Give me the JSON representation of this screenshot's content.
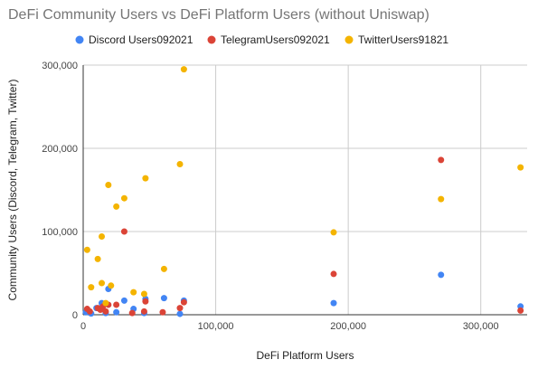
{
  "chart_data": {
    "type": "scatter",
    "title": "DeFi Community Users vs DeFi Platform Users (without Uniswap)",
    "xlabel": "DeFi Platform Users",
    "ylabel": "Community Users (Discord, Telegram, Twitter)",
    "xlim": [
      0,
      335000
    ],
    "ylim": [
      0,
      300000
    ],
    "xticks": [
      0,
      100000,
      200000,
      300000
    ],
    "yticks": [
      0,
      100000,
      200000,
      300000
    ],
    "xtick_labels": [
      "0",
      "100,000",
      "200,000",
      "300,000"
    ],
    "ytick_labels": [
      "0",
      "100,000",
      "200,000",
      "300,000"
    ],
    "grid": true,
    "legend": "top",
    "series": [
      {
        "name": "Discord Users092021",
        "color": "#4285f4",
        "points": [
          [
            2000,
            3000
          ],
          [
            6000,
            1500
          ],
          [
            10000,
            8000
          ],
          [
            14000,
            14000
          ],
          [
            17000,
            2000
          ],
          [
            19000,
            31000
          ],
          [
            25000,
            3000
          ],
          [
            31000,
            17000
          ],
          [
            38000,
            7000
          ],
          [
            46000,
            2000
          ],
          [
            47000,
            19000
          ],
          [
            61000,
            20000
          ],
          [
            73000,
            1000
          ],
          [
            76000,
            17000
          ],
          [
            189000,
            14000
          ],
          [
            270000,
            48000
          ],
          [
            330000,
            10000
          ]
        ]
      },
      {
        "name": "TelegramUsers092021",
        "color": "#db4437",
        "points": [
          [
            3000,
            7000
          ],
          [
            5000,
            4000
          ],
          [
            11000,
            8000
          ],
          [
            13000,
            6000
          ],
          [
            15000,
            10000
          ],
          [
            17000,
            4000
          ],
          [
            19000,
            12000
          ],
          [
            25000,
            12000
          ],
          [
            31000,
            100000
          ],
          [
            37000,
            2000
          ],
          [
            46000,
            4000
          ],
          [
            47000,
            16000
          ],
          [
            60000,
            3000
          ],
          [
            73000,
            8000
          ],
          [
            76000,
            15000
          ],
          [
            189000,
            49000
          ],
          [
            270000,
            186000
          ],
          [
            330000,
            5000
          ]
        ]
      },
      {
        "name": "TwitterUsers91821",
        "color": "#f4b400",
        "points": [
          [
            3000,
            78000
          ],
          [
            6000,
            33000
          ],
          [
            11000,
            67000
          ],
          [
            14000,
            94000
          ],
          [
            14000,
            38000
          ],
          [
            17000,
            14000
          ],
          [
            19000,
            156000
          ],
          [
            21000,
            35000
          ],
          [
            25000,
            130000
          ],
          [
            31000,
            140000
          ],
          [
            38000,
            27000
          ],
          [
            46000,
            25000
          ],
          [
            47000,
            164000
          ],
          [
            61000,
            55000
          ],
          [
            73000,
            181000
          ],
          [
            76000,
            295000
          ],
          [
            189000,
            99000
          ],
          [
            270000,
            139000
          ],
          [
            330000,
            177000
          ]
        ]
      }
    ]
  }
}
